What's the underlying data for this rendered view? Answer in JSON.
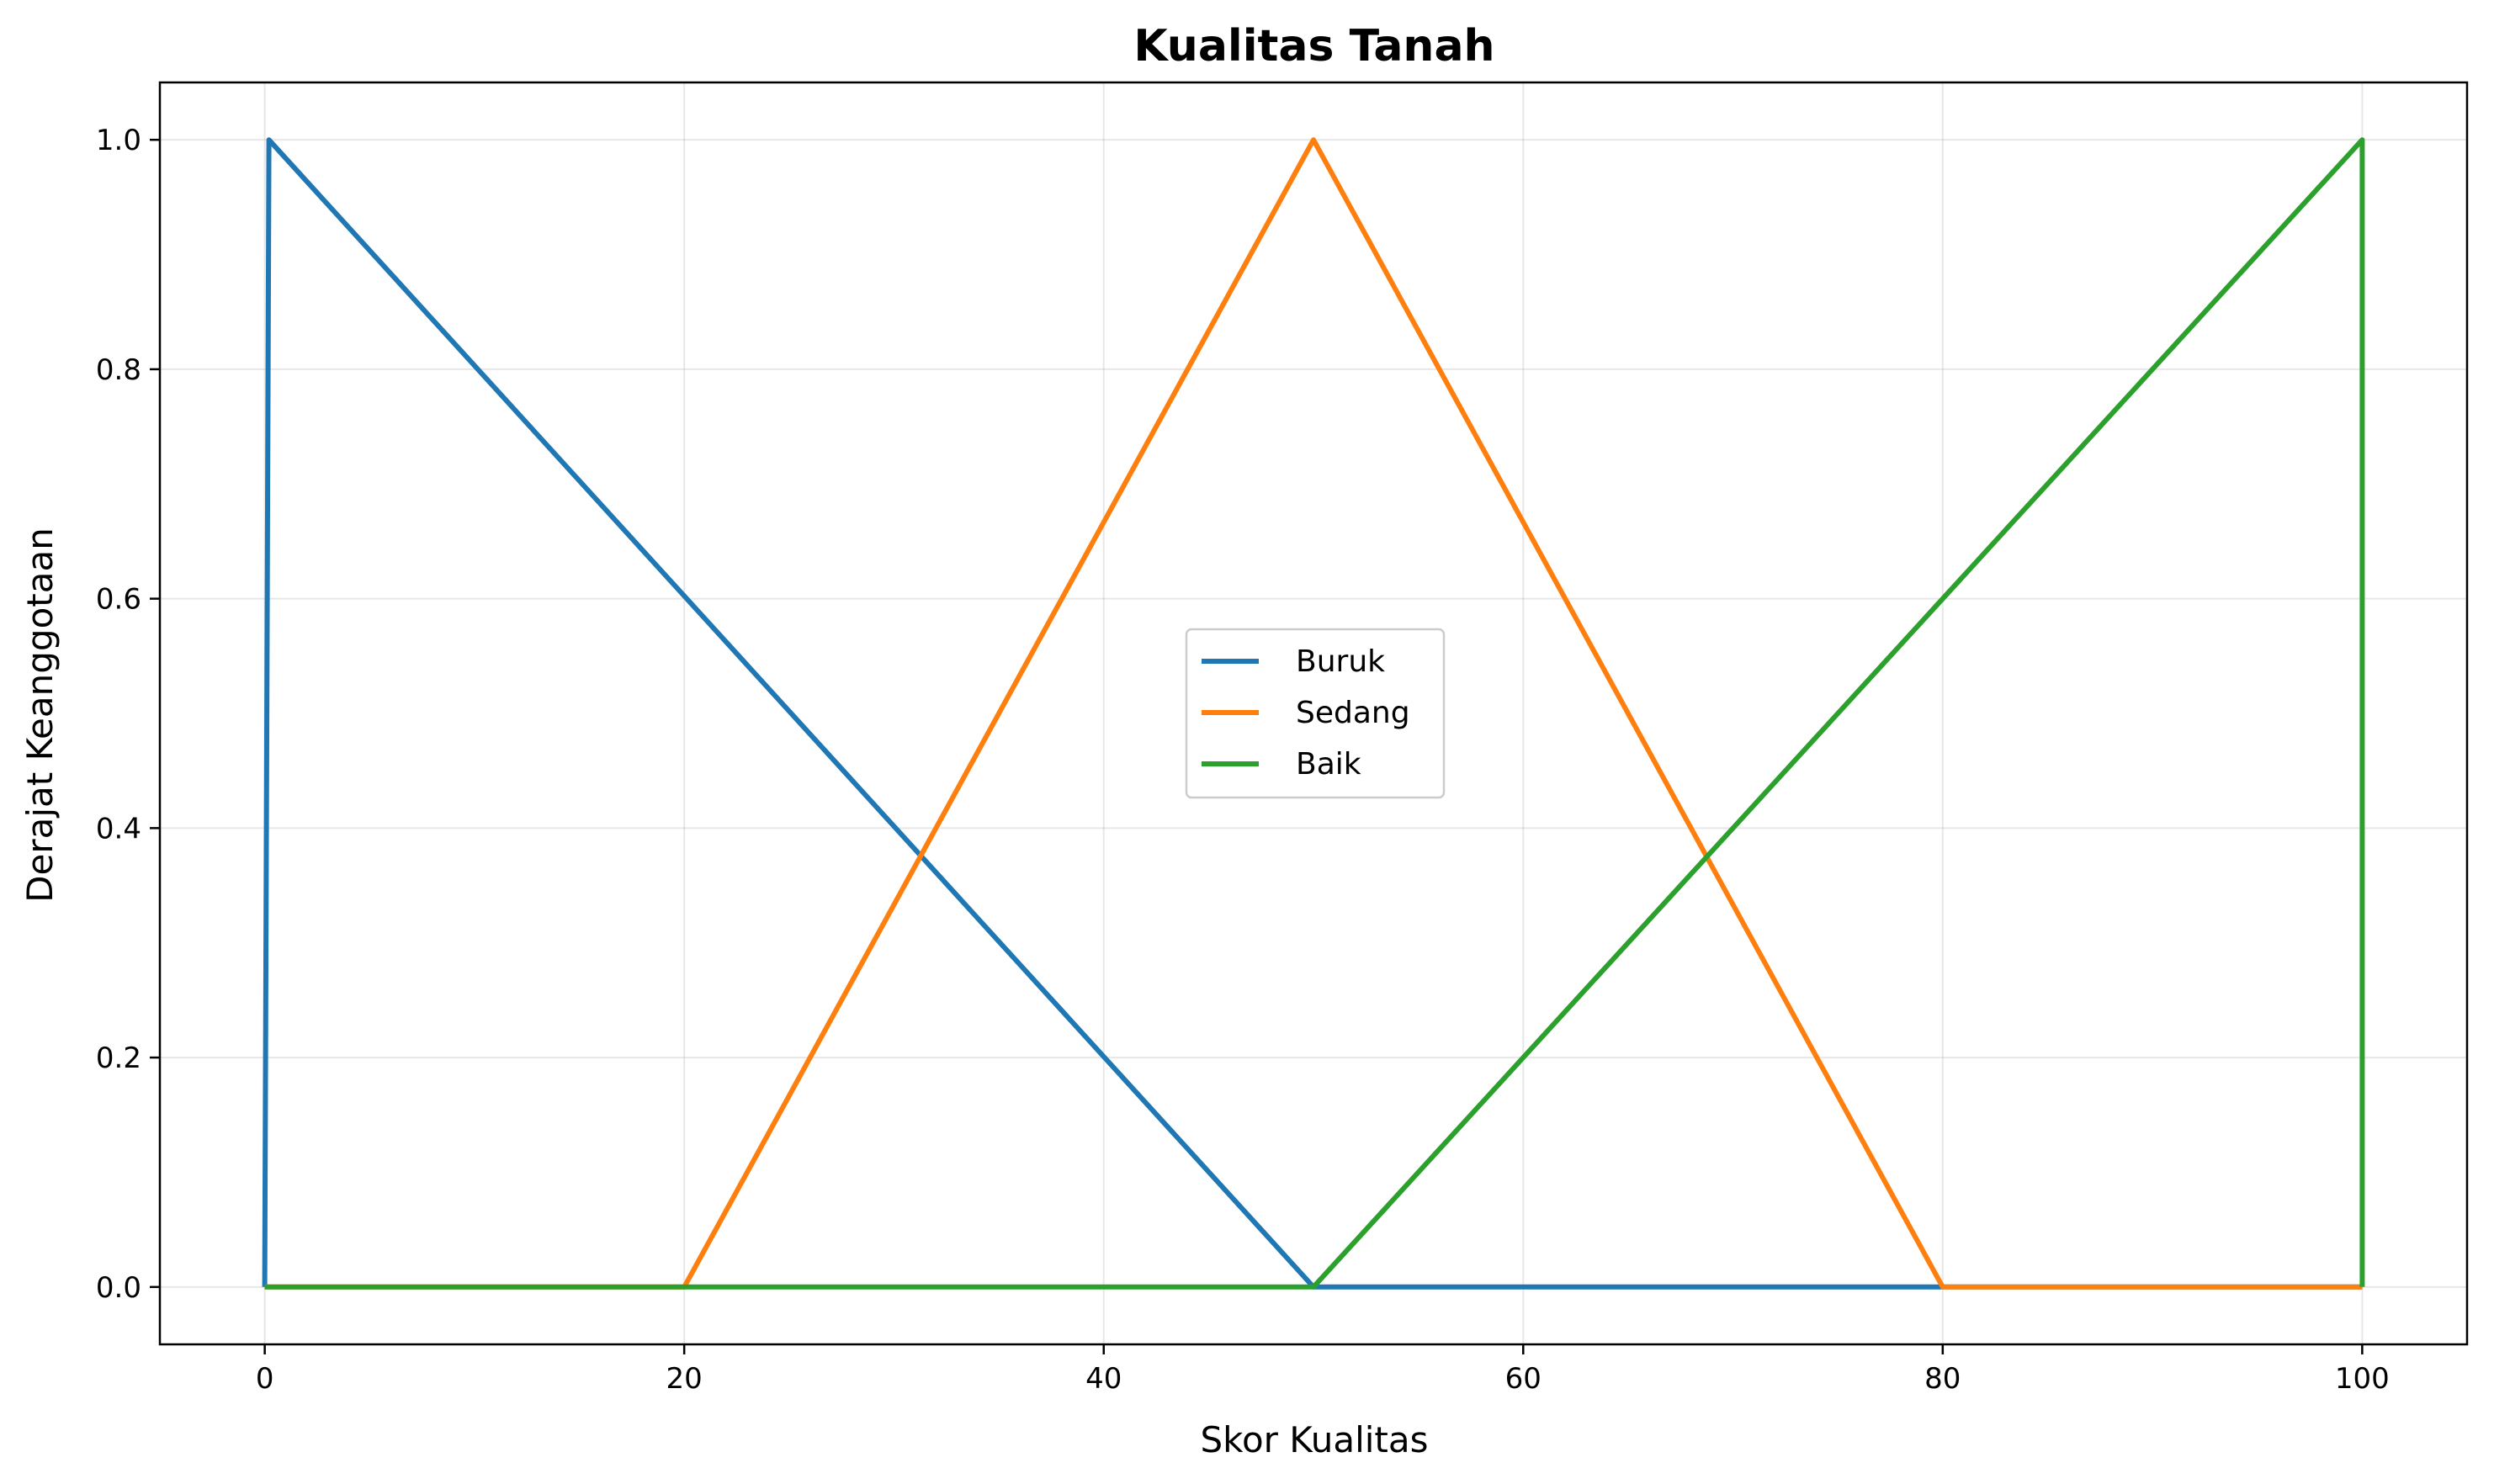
{
  "chart_data": {
    "type": "line",
    "title": "Kualitas Tanah",
    "xlabel": "Skor Kualitas",
    "ylabel": "Derajat Keanggotaan",
    "xlim": [
      -5,
      105
    ],
    "ylim": [
      -0.05,
      1.05
    ],
    "xticks": [
      0,
      20,
      40,
      60,
      80,
      100
    ],
    "xtick_labels": [
      "0",
      "20",
      "40",
      "60",
      "80",
      "100"
    ],
    "yticks": [
      0.0,
      0.2,
      0.4,
      0.6,
      0.8,
      1.0
    ],
    "ytick_labels": [
      "0.0",
      "0.2",
      "0.4",
      "0.6",
      "0.8",
      "1.0"
    ],
    "grid": true,
    "legend_position": "center",
    "series": [
      {
        "name": "Buruk",
        "color": "#1f77b4",
        "x": [
          0,
          0.2,
          50,
          100
        ],
        "y": [
          0,
          1,
          0,
          0
        ]
      },
      {
        "name": "Sedang",
        "color": "#ff7f0e",
        "x": [
          0,
          20,
          50,
          80,
          100
        ],
        "y": [
          0,
          0,
          1,
          0,
          0
        ]
      },
      {
        "name": "Baik",
        "color": "#2ca02c",
        "x": [
          0,
          50,
          100,
          100
        ],
        "y": [
          0,
          0,
          1,
          0
        ]
      }
    ]
  }
}
